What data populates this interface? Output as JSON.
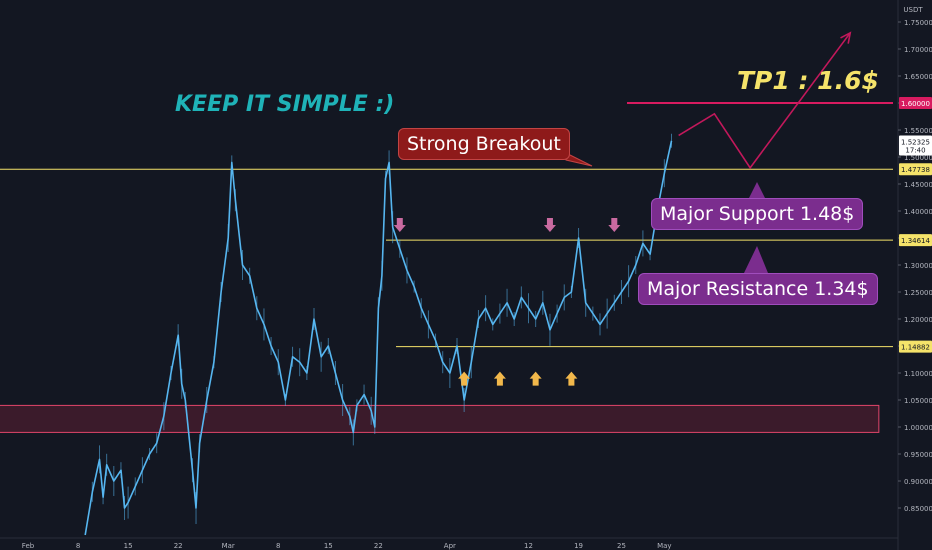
{
  "chart_data": {
    "type": "line",
    "currency": "USDT",
    "y_ticks": [
      "0.85000",
      "0.90000",
      "0.95000",
      "1.00000",
      "1.05000",
      "1.10000",
      "1.15000",
      "1.20000",
      "1.25000",
      "1.30000",
      "1.35000",
      "1.40000",
      "1.45000",
      "1.50000",
      "1.55000",
      "1.60000",
      "1.65000",
      "1.70000",
      "1.75000"
    ],
    "ylim": [
      0.8,
      1.8
    ],
    "x_ticks": [
      {
        "label": "Feb",
        "day": 0
      },
      {
        "label": "8",
        "day": 7
      },
      {
        "label": "15",
        "day": 14
      },
      {
        "label": "22",
        "day": 21
      },
      {
        "label": "Mar",
        "day": 28
      },
      {
        "label": "8",
        "day": 35
      },
      {
        "label": "15",
        "day": 42
      },
      {
        "label": "22",
        "day": 49
      },
      {
        "label": "Apr",
        "day": 59
      },
      {
        "label": "12",
        "day": 70
      },
      {
        "label": "19",
        "day": 77
      },
      {
        "label": "25",
        "day": 83
      },
      {
        "label": "May",
        "day": 89
      }
    ],
    "series": [
      {
        "points": [
          [
            8,
            0.8
          ],
          [
            9,
            0.88
          ],
          [
            10,
            0.94
          ],
          [
            10.5,
            0.87
          ],
          [
            11,
            0.93
          ],
          [
            12,
            0.9
          ],
          [
            13,
            0.92
          ],
          [
            13.5,
            0.85
          ],
          [
            14,
            0.86
          ],
          [
            15,
            0.89
          ],
          [
            16,
            0.92
          ],
          [
            17,
            0.95
          ],
          [
            18,
            0.97
          ],
          [
            19,
            1.02
          ],
          [
            20,
            1.1
          ],
          [
            21,
            1.17
          ],
          [
            21.5,
            1.08
          ],
          [
            22,
            1.05
          ],
          [
            23,
            0.92
          ],
          [
            23.5,
            0.85
          ],
          [
            24,
            0.97
          ],
          [
            25,
            1.05
          ],
          [
            26,
            1.12
          ],
          [
            27,
            1.25
          ],
          [
            28,
            1.35
          ],
          [
            28.5,
            1.49
          ],
          [
            29,
            1.42
          ],
          [
            30,
            1.3
          ],
          [
            31,
            1.28
          ],
          [
            32,
            1.22
          ],
          [
            33,
            1.19
          ],
          [
            34,
            1.15
          ],
          [
            35,
            1.12
          ],
          [
            36,
            1.05
          ],
          [
            37,
            1.13
          ],
          [
            38,
            1.12
          ],
          [
            39,
            1.1
          ],
          [
            40,
            1.2
          ],
          [
            41,
            1.13
          ],
          [
            42,
            1.15
          ],
          [
            43,
            1.1
          ],
          [
            44,
            1.05
          ],
          [
            45,
            1.02
          ],
          [
            45.5,
            0.99
          ],
          [
            46,
            1.04
          ],
          [
            47,
            1.06
          ],
          [
            48,
            1.03
          ],
          [
            48.5,
            1.0
          ],
          [
            49,
            1.22
          ],
          [
            49.5,
            1.28
          ],
          [
            50,
            1.46
          ],
          [
            50.5,
            1.49
          ],
          [
            51,
            1.37
          ],
          [
            52,
            1.33
          ],
          [
            53,
            1.29
          ],
          [
            54,
            1.26
          ],
          [
            55,
            1.22
          ],
          [
            56,
            1.19
          ],
          [
            57,
            1.16
          ],
          [
            58,
            1.12
          ],
          [
            59,
            1.1
          ],
          [
            60,
            1.15
          ],
          [
            61,
            1.05
          ],
          [
            62,
            1.12
          ],
          [
            63,
            1.2
          ],
          [
            64,
            1.22
          ],
          [
            65,
            1.19
          ],
          [
            66,
            1.21
          ],
          [
            67,
            1.23
          ],
          [
            68,
            1.2
          ],
          [
            69,
            1.24
          ],
          [
            70,
            1.22
          ],
          [
            71,
            1.2
          ],
          [
            72,
            1.23
          ],
          [
            73,
            1.18
          ],
          [
            74,
            1.21
          ],
          [
            75,
            1.24
          ],
          [
            76,
            1.25
          ],
          [
            77,
            1.35
          ],
          [
            78,
            1.23
          ],
          [
            79,
            1.21
          ],
          [
            80,
            1.19
          ],
          [
            81,
            1.21
          ],
          [
            82,
            1.23
          ],
          [
            83,
            1.25
          ],
          [
            84,
            1.27
          ],
          [
            85,
            1.3
          ],
          [
            86,
            1.34
          ],
          [
            87,
            1.32
          ],
          [
            88,
            1.4
          ],
          [
            89,
            1.47
          ],
          [
            90,
            1.53
          ]
        ]
      }
    ],
    "horizontal_levels": [
      {
        "price": 1.6,
        "label": "1.60000",
        "style": "tp"
      },
      {
        "price": 1.47738,
        "label": "1.47738",
        "style": "level"
      },
      {
        "price": 1.34614,
        "label": "1.34614",
        "style": "level"
      },
      {
        "price": 1.14882,
        "label": "1.14882",
        "style": "level"
      }
    ],
    "current_price": {
      "value": 1.52325,
      "label": "1.52325",
      "time_label": "17:40"
    },
    "support_zone": {
      "from_day": -11,
      "to_day": 119,
      "low": 0.99,
      "high": 1.04
    },
    "projection_path": [
      [
        91,
        1.54
      ],
      [
        96,
        1.58
      ],
      [
        101,
        1.48
      ],
      [
        115,
        1.73
      ]
    ],
    "down_arrows": [
      [
        52,
        1.35
      ],
      [
        73,
        1.35
      ],
      [
        82,
        1.35
      ]
    ],
    "up_arrows": [
      [
        61,
        1.11
      ],
      [
        66,
        1.11
      ],
      [
        71,
        1.11
      ],
      [
        76,
        1.11
      ]
    ]
  },
  "annotations": {
    "keep_simple": "KEEP IT SIMPLE :)",
    "tp1": "TP1 : 1.6$",
    "strong_breakout": "Strong Breakout",
    "major_support": "Major Support 1.48$",
    "major_resistance": "Major Resistance 1.34$"
  },
  "colors": {
    "background": "#131722",
    "price_line": "#56b6f0",
    "level_line": "#f5e36a",
    "tp_line": "#d81b60",
    "projection": "#c2185b",
    "zone_fill": "rgba(180,40,70,0.25)",
    "zone_border": "#e0456a",
    "breakout_box": "#8e1a1a",
    "callout_box": "#7b2d8e",
    "down_arrow": "#c96aa0",
    "up_arrow": "#f2b84b",
    "keep_simple": "#1fb3b8",
    "tp1_text": "#f5e36a"
  }
}
